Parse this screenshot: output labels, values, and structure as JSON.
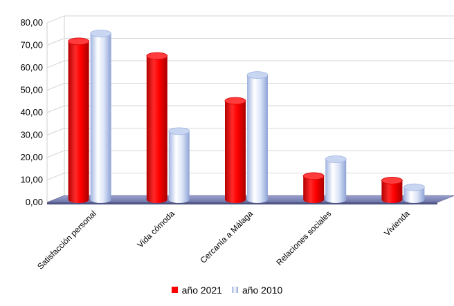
{
  "chart_data": {
    "type": "bar",
    "title": "",
    "xlabel": "",
    "ylabel": "",
    "ylim": [
      0,
      80
    ],
    "y_ticks": [
      "0,00",
      "10,00",
      "20,00",
      "30,00",
      "40,00",
      "50,00",
      "60,00",
      "70,00",
      "80,00"
    ],
    "categories": [
      "Satisfacción personal",
      "Vida cómoda",
      "Cercanía a Málaga",
      "Relaciones sociales",
      "Vivienda"
    ],
    "series": [
      {
        "name": "año 2021",
        "color": "#ff0000",
        "values": [
          70.5,
          64,
          44,
          10.5,
          8.5
        ]
      },
      {
        "name": "año 2010",
        "color": "#b8c8ec",
        "values": [
          74,
          30.5,
          55.5,
          18,
          5.5
        ]
      }
    ],
    "grid": true,
    "legend_position": "bottom",
    "style": "3d-cylinder"
  }
}
